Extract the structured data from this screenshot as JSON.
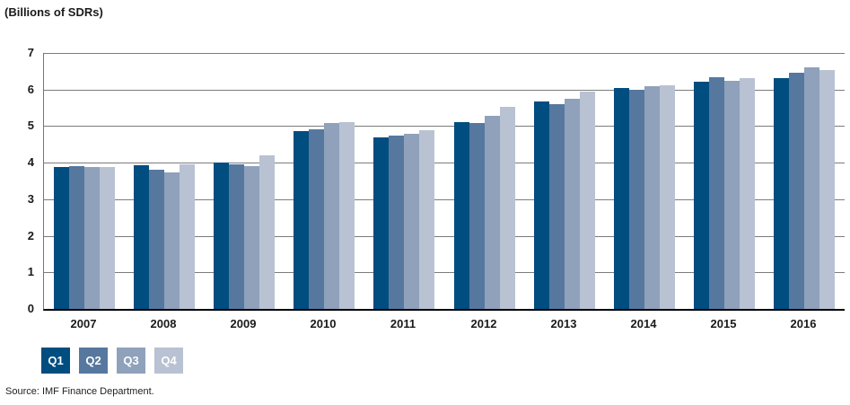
{
  "chart_data": {
    "type": "bar",
    "title": "(Billions of SDRs)",
    "source": "Source: IMF Finance Department.",
    "categories": [
      "2007",
      "2008",
      "2009",
      "2010",
      "2011",
      "2012",
      "2013",
      "2014",
      "2015",
      "2016"
    ],
    "series": [
      {
        "name": "Q1",
        "color": "#004d80",
        "values": [
          3.87,
          3.92,
          4.01,
          4.87,
          4.69,
          5.12,
          5.68,
          6.03,
          6.22,
          6.3
        ]
      },
      {
        "name": "Q2",
        "color": "#56789f",
        "values": [
          3.91,
          3.8,
          3.95,
          4.9,
          4.74,
          5.08,
          5.61,
          5.99,
          6.33,
          6.45
        ]
      },
      {
        "name": "Q3",
        "color": "#8fa1bb",
        "values": [
          3.87,
          3.73,
          3.91,
          5.09,
          4.78,
          5.27,
          5.74,
          6.1,
          6.24,
          6.6
        ]
      },
      {
        "name": "Q4",
        "color": "#b8c2d3",
        "values": [
          3.89,
          3.95,
          4.19,
          5.11,
          4.88,
          5.52,
          5.95,
          6.12,
          6.31,
          6.53
        ]
      }
    ],
    "xlabel": "",
    "ylabel": "",
    "ylim": [
      0,
      7
    ],
    "yticks": [
      0,
      1,
      2,
      3,
      4,
      5,
      6,
      7
    ],
    "grid": true,
    "legend_position": "bottom-left",
    "gridline_color": "#7c7c7c",
    "axis_color": "#000000"
  }
}
